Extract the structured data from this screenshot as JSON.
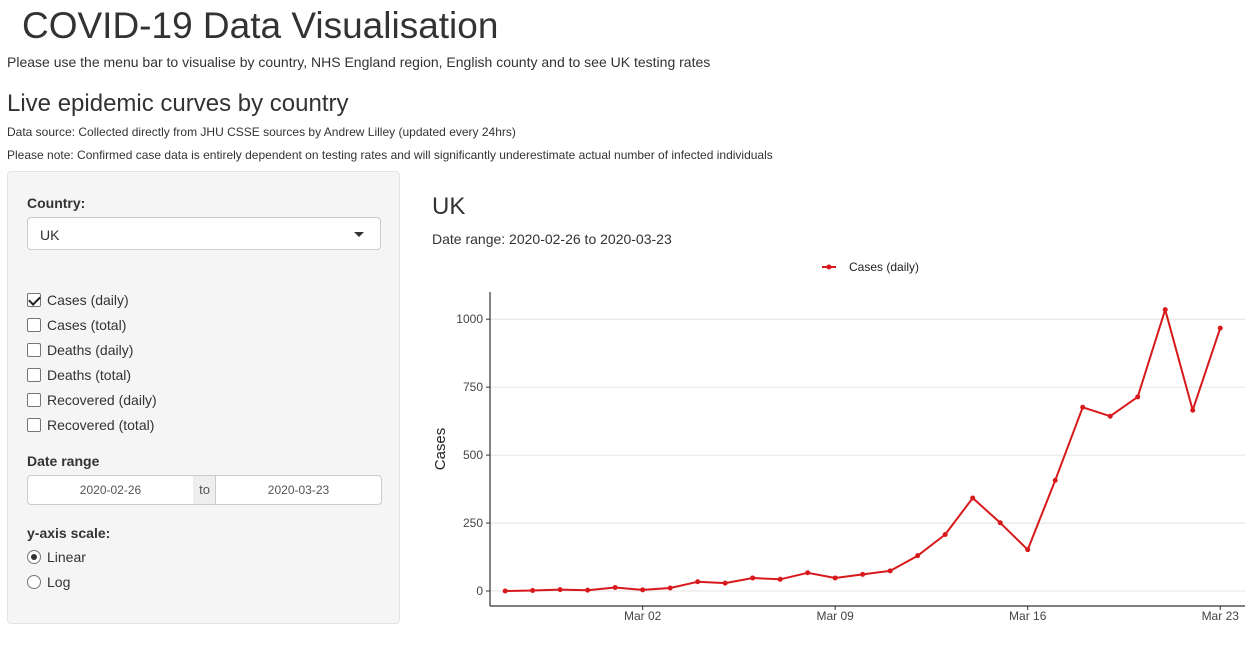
{
  "app": {
    "title": "COVID-19 Data Visualisation",
    "intro": "Please use the menu bar to visualise by country, NHS England region, English county and to see UK testing rates"
  },
  "section": {
    "title": "Live epidemic curves by country",
    "source_note": "Data source: Collected directly from JHU CSSE sources by Andrew Lilley (updated every 24hrs)",
    "caveat_note": "Please note: Confirmed case data is entirely dependent on testing rates and will significantly underestimate actual number of infected individuals"
  },
  "sidebar": {
    "country_label": "Country:",
    "country_value": "UK",
    "metrics": [
      {
        "label": "Cases (daily)",
        "checked": true
      },
      {
        "label": "Cases (total)",
        "checked": false
      },
      {
        "label": "Deaths (daily)",
        "checked": false
      },
      {
        "label": "Deaths (total)",
        "checked": false
      },
      {
        "label": "Recovered (daily)",
        "checked": false
      },
      {
        "label": "Recovered (total)",
        "checked": false
      }
    ],
    "date_range_label": "Date range",
    "date_start": "2020-02-26",
    "date_separator": "to",
    "date_end": "2020-03-23",
    "scale_label": "y-axis scale:",
    "scale_options": [
      {
        "label": "Linear",
        "checked": true
      },
      {
        "label": "Log",
        "checked": false
      }
    ]
  },
  "plot": {
    "title": "UK",
    "subtitle": "Date range: 2020-02-26 to 2020-03-23"
  },
  "chart_data": {
    "type": "line",
    "ylabel": "Cases",
    "xlabel": "",
    "ylim": [
      0,
      1100
    ],
    "yticks": [
      0,
      250,
      500,
      750,
      1000
    ],
    "xticks": [
      "Mar 02",
      "Mar 09",
      "Mar 16",
      "Mar 23"
    ],
    "grid": "horizontal",
    "legend_position": "top",
    "series": [
      {
        "name": "Cases (daily)",
        "color": "#d7191c",
        "x": [
          "2020-02-26",
          "2020-02-27",
          "2020-02-28",
          "2020-02-29",
          "2020-03-01",
          "2020-03-02",
          "2020-03-03",
          "2020-03-04",
          "2020-03-05",
          "2020-03-06",
          "2020-03-07",
          "2020-03-08",
          "2020-03-09",
          "2020-03-10",
          "2020-03-11",
          "2020-03-12",
          "2020-03-13",
          "2020-03-14",
          "2020-03-15",
          "2020-03-16",
          "2020-03-17",
          "2020-03-18",
          "2020-03-19",
          "2020-03-20",
          "2020-03-21",
          "2020-03-22",
          "2020-03-23"
        ],
        "values": [
          0,
          2,
          5,
          3,
          13,
          4,
          11,
          34,
          29,
          48,
          43,
          67,
          48,
          61,
          74,
          130,
          208,
          342,
          251,
          152,
          407,
          676,
          643,
          714,
          1035,
          665,
          967
        ]
      }
    ]
  }
}
